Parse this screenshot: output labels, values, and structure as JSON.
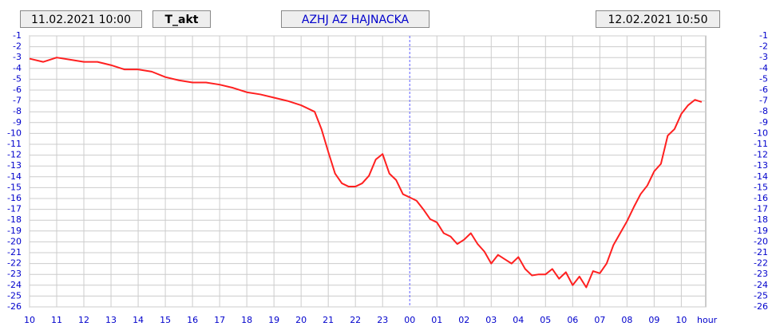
{
  "chart_data": {
    "type": "line",
    "title": "AZHJ AZ HAJNACKA",
    "subtitle": "T_akt",
    "start_label": "11.02.2021 10:00",
    "end_label": "12.02.2021 10:50",
    "x_label": "hour",
    "xlim": [
      0,
      24.9
    ],
    "xticks": [
      {
        "value": 0,
        "label": "10"
      },
      {
        "value": 1,
        "label": "11"
      },
      {
        "value": 2,
        "label": "12"
      },
      {
        "value": 3,
        "label": "13"
      },
      {
        "value": 4,
        "label": "14"
      },
      {
        "value": 5,
        "label": "15"
      },
      {
        "value": 6,
        "label": "16"
      },
      {
        "value": 7,
        "label": "17"
      },
      {
        "value": 8,
        "label": "18"
      },
      {
        "value": 9,
        "label": "19"
      },
      {
        "value": 10,
        "label": "20"
      },
      {
        "value": 11,
        "label": "21"
      },
      {
        "value": 12,
        "label": "22"
      },
      {
        "value": 13,
        "label": "23"
      },
      {
        "value": 14,
        "label": "00"
      },
      {
        "value": 15,
        "label": "01"
      },
      {
        "value": 16,
        "label": "02"
      },
      {
        "value": 17,
        "label": "03"
      },
      {
        "value": 18,
        "label": "04"
      },
      {
        "value": 19,
        "label": "05"
      },
      {
        "value": 20,
        "label": "06"
      },
      {
        "value": 21,
        "label": "07"
      },
      {
        "value": 22,
        "label": "08"
      },
      {
        "value": 23,
        "label": "09"
      },
      {
        "value": 24,
        "label": "10"
      }
    ],
    "ylim": [
      -26,
      -1
    ],
    "yticks": [
      -1,
      -2,
      -3,
      -4,
      -5,
      -6,
      -7,
      -8,
      -9,
      -10,
      -11,
      -12,
      -13,
      -14,
      -15,
      -16,
      -17,
      -18,
      -19,
      -20,
      -21,
      -22,
      -23,
      -24,
      -25,
      -26
    ],
    "grid": true,
    "day_boundary": 14,
    "series": [
      {
        "name": "T_akt",
        "color": "#ff2020",
        "x": [
          0,
          0.5,
          0.75,
          1,
          1.5,
          2,
          2.5,
          3,
          3.5,
          4,
          4.5,
          5,
          5.5,
          6,
          6.5,
          7,
          7.5,
          8,
          8.5,
          9,
          9.5,
          10,
          10.5,
          10.75,
          11,
          11.25,
          11.5,
          11.75,
          12,
          12.25,
          12.5,
          12.75,
          13,
          13.25,
          13.5,
          13.75,
          14,
          14.25,
          14.5,
          14.75,
          15,
          15.25,
          15.5,
          15.75,
          16,
          16.25,
          16.5,
          16.75,
          17,
          17.25,
          17.5,
          17.75,
          18,
          18.25,
          18.5,
          18.75,
          19,
          19.25,
          19.5,
          19.75,
          20,
          20.25,
          20.5,
          20.75,
          21,
          21.25,
          21.5,
          21.75,
          22,
          22.25,
          22.5,
          22.75,
          23,
          23.25,
          23.5,
          23.75,
          24,
          24.25,
          24.5,
          24.75
        ],
        "values": [
          -3.1,
          -3.4,
          -3.2,
          -3.0,
          -3.2,
          -3.4,
          -3.4,
          -3.7,
          -4.1,
          -4.1,
          -4.3,
          -4.8,
          -5.1,
          -5.3,
          -5.3,
          -5.5,
          -5.8,
          -6.2,
          -6.4,
          -6.7,
          -7.0,
          -7.4,
          -8.0,
          -9.6,
          -11.7,
          -13.7,
          -14.6,
          -14.9,
          -14.9,
          -14.6,
          -13.9,
          -12.4,
          -11.9,
          -13.7,
          -14.3,
          -15.6,
          -15.9,
          -16.2,
          -17.0,
          -17.9,
          -18.2,
          -19.2,
          -19.5,
          -20.2,
          -19.8,
          -19.2,
          -20.2,
          -20.9,
          -22.0,
          -21.2,
          -21.6,
          -22.0,
          -21.4,
          -22.5,
          -23.1,
          -23.0,
          -23.0,
          -22.5,
          -23.4,
          -22.8,
          -24.0,
          -23.2,
          -24.2,
          -22.7,
          -22.9,
          -22.0,
          -20.3,
          -19.2,
          -18.1,
          -16.8,
          -15.6,
          -14.8,
          -13.5,
          -12.8,
          -10.2,
          -9.6,
          -8.2,
          -7.4,
          -6.9,
          -7.1
        ]
      }
    ]
  }
}
